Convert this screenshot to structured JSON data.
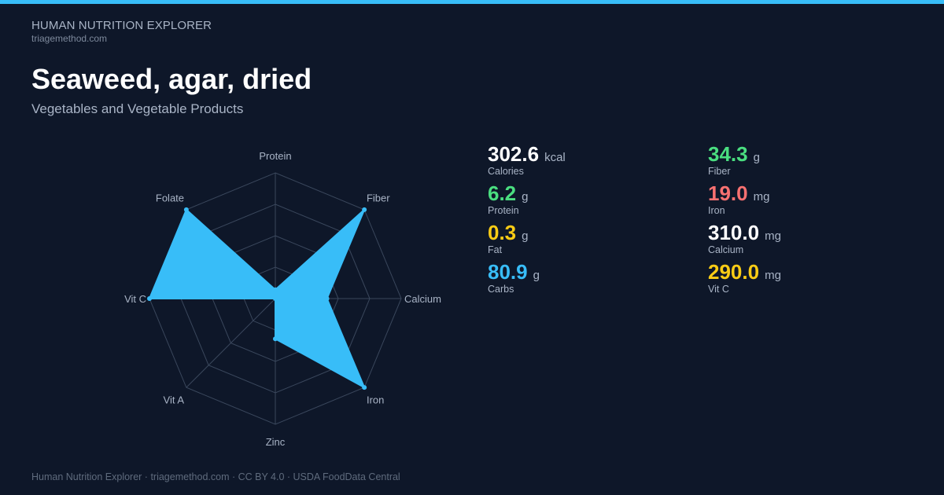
{
  "header": {
    "brand": "HUMAN NUTRITION EXPLORER",
    "domain": "triagemethod.com"
  },
  "food": {
    "name": "Seaweed, agar, dried",
    "category": "Vegetables and Vegetable Products"
  },
  "colors": {
    "accent": "#38bdf8",
    "background": "#0e1729",
    "green": "#4ade80",
    "red": "#f87171",
    "yellow": "#facc15",
    "blue": "#38bdf8",
    "white": "#ffffff",
    "grid": "#3a475c"
  },
  "chart_data": {
    "type": "radar",
    "axes": [
      "Protein",
      "Fiber",
      "Calcium",
      "Iron",
      "Zinc",
      "Vit A",
      "Vit C",
      "Folate"
    ],
    "values": [
      0.07,
      1.0,
      0.41,
      1.0,
      0.32,
      0.0,
      1.0,
      1.0
    ],
    "range": [
      0,
      1
    ],
    "grid_rings": 4,
    "color": "#38bdf8"
  },
  "stats": [
    {
      "value": "302.6",
      "unit": "kcal",
      "label": "Calories",
      "color": "#ffffff"
    },
    {
      "value": "6.2",
      "unit": "g",
      "label": "Protein",
      "color": "#4ade80"
    },
    {
      "value": "0.3",
      "unit": "g",
      "label": "Fat",
      "color": "#facc15"
    },
    {
      "value": "80.9",
      "unit": "g",
      "label": "Carbs",
      "color": "#38bdf8"
    },
    {
      "value": "34.3",
      "unit": "g",
      "label": "Fiber",
      "color": "#4ade80"
    },
    {
      "value": "19.0",
      "unit": "mg",
      "label": "Iron",
      "color": "#f87171"
    },
    {
      "value": "310.0",
      "unit": "mg",
      "label": "Calcium",
      "color": "#ffffff"
    },
    {
      "value": "290.0",
      "unit": "mg",
      "label": "Vit C",
      "color": "#facc15"
    }
  ],
  "footer": {
    "text": "Human Nutrition Explorer · triagemethod.com · CC BY 4.0 · USDA FoodData Central"
  }
}
